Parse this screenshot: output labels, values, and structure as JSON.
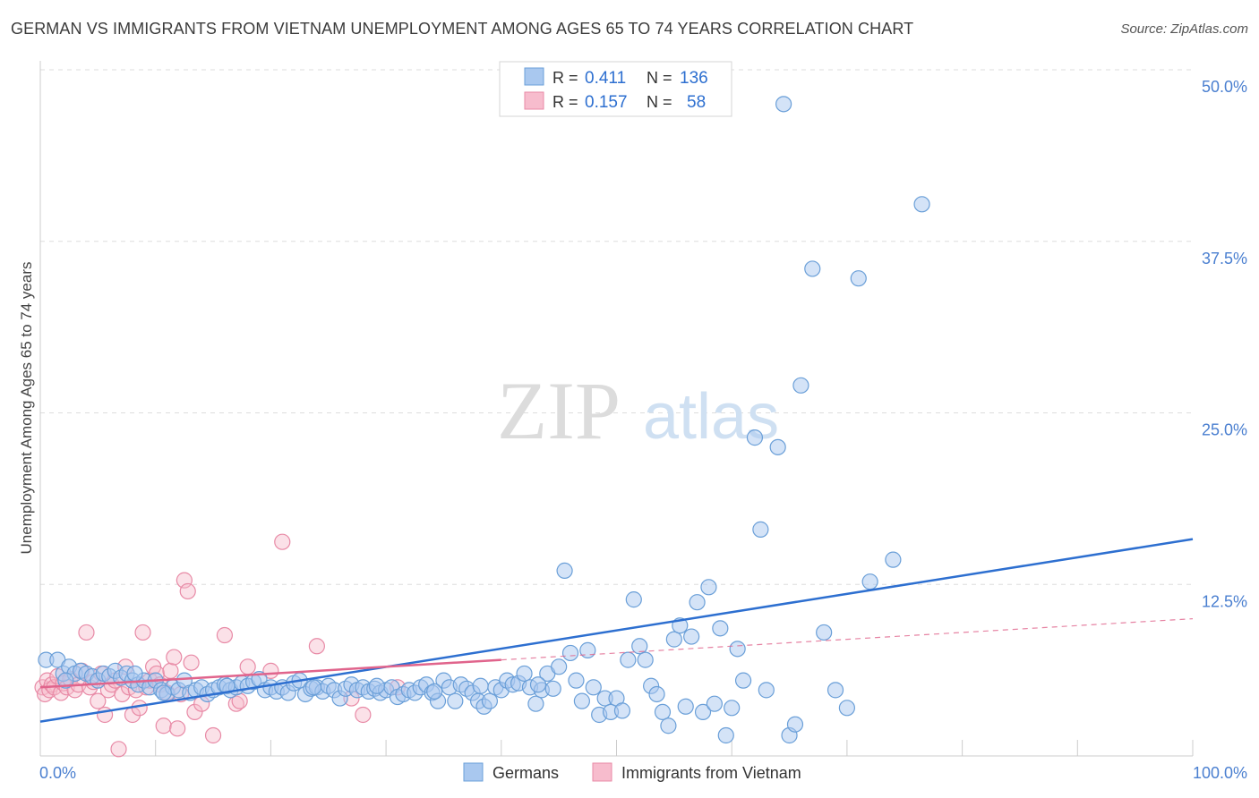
{
  "title": "GERMAN VS IMMIGRANTS FROM VIETNAM UNEMPLOYMENT AMONG AGES 65 TO 74 YEARS CORRELATION CHART",
  "source": "Source: ZipAtlas.com",
  "watermark": {
    "zip": "ZIP",
    "atlas": "atlas"
  },
  "colors": {
    "german_fill": "#a9c8ef",
    "german_stroke": "#6a9fd8",
    "german_line": "#2d6fd0",
    "vietnam_fill": "#f7bccd",
    "vietnam_stroke": "#e88aa6",
    "vietnam_line": "#e0648c",
    "axis_label": "#4a7fd0",
    "grid": "#dddddd"
  },
  "legend": {
    "rows": [
      {
        "r_label": "R =",
        "r_value": "0.411",
        "n_label": "N =",
        "n_value": "136"
      },
      {
        "r_label": "R =",
        "r_value": "0.157",
        "n_label": "N =",
        "n_value": "58"
      }
    ]
  },
  "bottom_legend": {
    "germans": "Germans",
    "vietnam": "Immigrants from Vietnam"
  },
  "chart_data": {
    "type": "scatter",
    "title": "GERMAN VS IMMIGRANTS FROM VIETNAM UNEMPLOYMENT AMONG AGES 65 TO 74 YEARS CORRELATION CHART",
    "xlabel": "",
    "ylabel": "Unemployment Among Ages 65 to 74 years",
    "xlim": [
      0,
      100
    ],
    "ylim": [
      0,
      50
    ],
    "x_tick_labels": [
      "0.0%",
      "100.0%"
    ],
    "y_ticks": [
      12.5,
      25.0,
      37.5,
      50.0
    ],
    "y_tick_labels": [
      "12.5%",
      "25.0%",
      "37.5%",
      "50.0%"
    ],
    "grid": true,
    "legend_position": "top-center",
    "series": [
      {
        "name": "Germans",
        "r": 0.411,
        "n": 136,
        "trend": {
          "x": [
            0,
            100
          ],
          "y": [
            2.5,
            15.8
          ],
          "style": "solid"
        },
        "points": [
          [
            0.5,
            7.0
          ],
          [
            1.5,
            7.0
          ],
          [
            2,
            6.0
          ],
          [
            2.5,
            6.5
          ],
          [
            3,
            6.0
          ],
          [
            3.5,
            6.2
          ],
          [
            4,
            6.0
          ],
          [
            4.5,
            5.8
          ],
          [
            5,
            5.5
          ],
          [
            5.5,
            6.0
          ],
          [
            6,
            5.8
          ],
          [
            6.5,
            6.2
          ],
          [
            7,
            5.7
          ],
          [
            7.5,
            6.0
          ],
          [
            8,
            5.5
          ],
          [
            8.5,
            5.2
          ],
          [
            9,
            5.5
          ],
          [
            9.5,
            5.0
          ],
          [
            10,
            5.5
          ],
          [
            10.5,
            4.8
          ],
          [
            11,
            4.5
          ],
          [
            11.5,
            5.0
          ],
          [
            12,
            4.8
          ],
          [
            12.5,
            5.5
          ],
          [
            13,
            4.6
          ],
          [
            13.5,
            4.8
          ],
          [
            14,
            5.0
          ],
          [
            14.5,
            4.5
          ],
          [
            15,
            4.8
          ],
          [
            15.5,
            5.0
          ],
          [
            16,
            5.2
          ],
          [
            16.5,
            4.8
          ],
          [
            17,
            5.0
          ],
          [
            17.5,
            5.3
          ],
          [
            18,
            5.1
          ],
          [
            18.5,
            5.4
          ],
          [
            19,
            5.6
          ],
          [
            19.5,
            4.8
          ],
          [
            20,
            5.0
          ],
          [
            20.5,
            4.7
          ],
          [
            21,
            5.0
          ],
          [
            21.5,
            4.6
          ],
          [
            22,
            5.3
          ],
          [
            22.5,
            5.5
          ],
          [
            23,
            4.5
          ],
          [
            23.5,
            4.9
          ],
          [
            24,
            5.0
          ],
          [
            24.5,
            4.7
          ],
          [
            25,
            5.1
          ],
          [
            25.5,
            4.8
          ],
          [
            26,
            4.2
          ],
          [
            26.5,
            4.9
          ],
          [
            27,
            5.2
          ],
          [
            27.5,
            4.8
          ],
          [
            28,
            5.0
          ],
          [
            28.5,
            4.7
          ],
          [
            29,
            4.9
          ],
          [
            29.5,
            4.6
          ],
          [
            30,
            4.8
          ],
          [
            30.5,
            5.0
          ],
          [
            31,
            4.3
          ],
          [
            31.5,
            4.5
          ],
          [
            32,
            4.8
          ],
          [
            32.5,
            4.6
          ],
          [
            33,
            5.0
          ],
          [
            33.5,
            5.2
          ],
          [
            34,
            4.6
          ],
          [
            34.5,
            4.0
          ],
          [
            35,
            5.5
          ],
          [
            35.5,
            5.0
          ],
          [
            36,
            4.0
          ],
          [
            36.5,
            5.2
          ],
          [
            37,
            4.9
          ],
          [
            37.5,
            4.6
          ],
          [
            38,
            4.0
          ],
          [
            38.5,
            3.6
          ],
          [
            39,
            4.0
          ],
          [
            39.5,
            5.0
          ],
          [
            40,
            4.8
          ],
          [
            40.5,
            5.5
          ],
          [
            41,
            5.2
          ],
          [
            41.5,
            5.3
          ],
          [
            42,
            6.0
          ],
          [
            42.5,
            5.0
          ],
          [
            43,
            3.8
          ],
          [
            43.5,
            4.8
          ],
          [
            44,
            6.0
          ],
          [
            44.5,
            4.9
          ],
          [
            45,
            6.5
          ],
          [
            45.5,
            13.5
          ],
          [
            46,
            7.5
          ],
          [
            46.5,
            5.5
          ],
          [
            47,
            4.0
          ],
          [
            47.5,
            7.7
          ],
          [
            48,
            5.0
          ],
          [
            48.5,
            3.0
          ],
          [
            49,
            4.2
          ],
          [
            49.5,
            3.2
          ],
          [
            50,
            4.2
          ],
          [
            50.5,
            3.3
          ],
          [
            51,
            7.0
          ],
          [
            51.5,
            11.4
          ],
          [
            52,
            8.0
          ],
          [
            52.5,
            7.0
          ],
          [
            53,
            5.1
          ],
          [
            53.5,
            4.5
          ],
          [
            54,
            3.2
          ],
          [
            54.5,
            2.2
          ],
          [
            55,
            8.5
          ],
          [
            55.5,
            9.5
          ],
          [
            56,
            3.6
          ],
          [
            56.5,
            8.7
          ],
          [
            57,
            11.2
          ],
          [
            57.5,
            3.2
          ],
          [
            58,
            12.3
          ],
          [
            58.5,
            3.8
          ],
          [
            59,
            9.3
          ],
          [
            59.5,
            1.5
          ],
          [
            60,
            3.5
          ],
          [
            60.5,
            7.8
          ],
          [
            61,
            5.5
          ],
          [
            62,
            23.2
          ],
          [
            62.5,
            16.5
          ],
          [
            63,
            4.8
          ],
          [
            64,
            22.5
          ],
          [
            64.5,
            47.5
          ],
          [
            65,
            1.5
          ],
          [
            65.5,
            2.3
          ],
          [
            66,
            27.0
          ],
          [
            67,
            35.5
          ],
          [
            68,
            9.0
          ],
          [
            69,
            4.8
          ],
          [
            70,
            3.5
          ],
          [
            71,
            34.8
          ],
          [
            72,
            12.7
          ],
          [
            74,
            14.3
          ],
          [
            76.5,
            40.2
          ],
          [
            2.2,
            5.5
          ],
          [
            8.2,
            6.0
          ],
          [
            10.7,
            4.6
          ],
          [
            16.2,
            5.1
          ],
          [
            23.7,
            5.0
          ],
          [
            29.2,
            5.1
          ],
          [
            34.2,
            4.7
          ],
          [
            38.2,
            5.1
          ],
          [
            43.2,
            5.2
          ]
        ]
      },
      {
        "name": "Immigrants from Vietnam",
        "r": 0.157,
        "n": 58,
        "trend_solid": {
          "x": [
            0,
            40
          ],
          "y": [
            5.0,
            7.0
          ]
        },
        "trend_dashed": {
          "x": [
            40,
            100
          ],
          "y": [
            7.0,
            10.0
          ]
        },
        "points": [
          [
            0.2,
            5.0
          ],
          [
            0.4,
            4.5
          ],
          [
            0.6,
            5.5
          ],
          [
            0.8,
            4.8
          ],
          [
            1,
            5.2
          ],
          [
            1.2,
            5.0
          ],
          [
            1.5,
            5.8
          ],
          [
            1.8,
            4.6
          ],
          [
            2,
            5.3
          ],
          [
            2.3,
            5.0
          ],
          [
            2.6,
            5.6
          ],
          [
            3,
            4.8
          ],
          [
            3.3,
            5.2
          ],
          [
            3.6,
            6.2
          ],
          [
            4,
            9.0
          ],
          [
            4.3,
            5.0
          ],
          [
            4.6,
            5.4
          ],
          [
            5,
            4.0
          ],
          [
            5.3,
            6.0
          ],
          [
            5.6,
            3.0
          ],
          [
            5.9,
            4.8
          ],
          [
            6.2,
            5.2
          ],
          [
            6.5,
            5.5
          ],
          [
            6.8,
            0.5
          ],
          [
            7.1,
            4.5
          ],
          [
            7.4,
            6.5
          ],
          [
            7.7,
            5.0
          ],
          [
            8,
            3.0
          ],
          [
            8.3,
            4.8
          ],
          [
            8.6,
            3.5
          ],
          [
            8.9,
            9.0
          ],
          [
            9.2,
            5.0
          ],
          [
            9.5,
            5.5
          ],
          [
            9.8,
            6.5
          ],
          [
            10.1,
            6.0
          ],
          [
            10.4,
            5.2
          ],
          [
            10.7,
            2.2
          ],
          [
            11,
            4.6
          ],
          [
            11.3,
            6.2
          ],
          [
            11.6,
            7.2
          ],
          [
            11.9,
            2.0
          ],
          [
            12.2,
            4.5
          ],
          [
            12.5,
            12.8
          ],
          [
            12.8,
            12.0
          ],
          [
            13.1,
            6.8
          ],
          [
            13.4,
            3.2
          ],
          [
            14,
            3.8
          ],
          [
            15,
            1.5
          ],
          [
            16,
            8.8
          ],
          [
            17,
            3.8
          ],
          [
            17.3,
            4.0
          ],
          [
            18,
            6.5
          ],
          [
            20,
            6.2
          ],
          [
            21,
            15.6
          ],
          [
            24,
            8.0
          ],
          [
            27,
            4.2
          ],
          [
            28,
            3.0
          ],
          [
            31,
            5.0
          ]
        ]
      }
    ]
  }
}
